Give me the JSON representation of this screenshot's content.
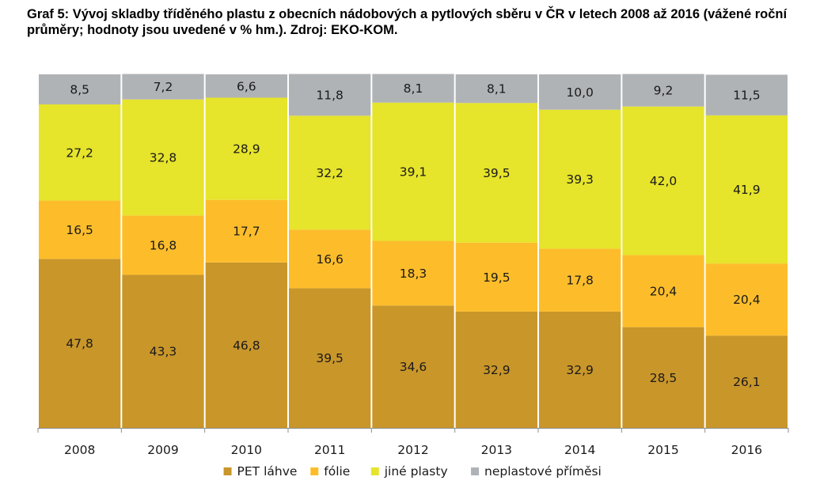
{
  "chart_data": {
    "type": "bar",
    "stacked": true,
    "title": "Graf 5: Vývoj skladby tříděného plastu z obecních nádobových a pytlových sběru v ČR v letech 2008 až 2016 (vážené roční průměry; hodnoty jsou uvedené v % hm.). Zdroj: EKO-KOM.",
    "xlabel": "",
    "ylabel": "",
    "ylim": [
      0,
      100
    ],
    "grid": false,
    "legend_position": "bottom",
    "categories": [
      "2008",
      "2009",
      "2010",
      "2011",
      "2012",
      "2013",
      "2014",
      "2015",
      "2016"
    ],
    "series": [
      {
        "name": "PET láhve",
        "color": "#C9962A",
        "values": [
          47.8,
          43.3,
          46.8,
          39.5,
          34.6,
          32.9,
          32.9,
          28.5,
          26.1
        ],
        "labels": [
          "47,8",
          "43,3",
          "46,8",
          "39,5",
          "34,6",
          "32,9",
          "32,9",
          "28,5",
          "26,1"
        ]
      },
      {
        "name": "fólie",
        "color": "#FDBD2B",
        "values": [
          16.5,
          16.8,
          17.7,
          16.6,
          18.3,
          19.5,
          17.8,
          20.4,
          20.4
        ],
        "labels": [
          "16,5",
          "16,8",
          "17,7",
          "16,6",
          "18,3",
          "19,5",
          "17,8",
          "20,4",
          "20,4"
        ]
      },
      {
        "name": "jiné plasty",
        "color": "#E6E42B",
        "values": [
          27.2,
          32.8,
          28.9,
          32.2,
          39.1,
          39.5,
          39.3,
          42.0,
          41.9
        ],
        "labels": [
          "27,2",
          "32,8",
          "28,9",
          "32,2",
          "39,1",
          "39,5",
          "39,3",
          "42,0",
          "41,9"
        ]
      },
      {
        "name": "neplastové příměsi",
        "color": "#B0B3B6",
        "values": [
          8.5,
          7.2,
          6.6,
          11.8,
          8.1,
          8.1,
          10.0,
          9.2,
          11.5
        ],
        "labels": [
          "8,5",
          "7,2",
          "6,6",
          "11,8",
          "8,1",
          "8,1",
          "10,0",
          "9,2",
          "11,5"
        ]
      }
    ]
  }
}
